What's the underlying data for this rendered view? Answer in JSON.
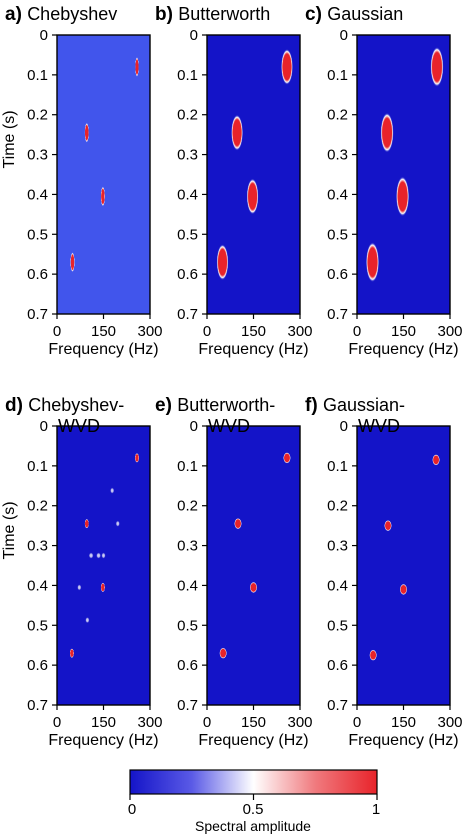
{
  "colors": {
    "low": "#1414c8",
    "mid": "#ffffff",
    "high": "#e8232a",
    "cheb_bg": "#4155ec",
    "axis": "#000000"
  },
  "chart_data": [
    {
      "type": "heatmap",
      "letter": "a)",
      "title": "Chebyshev",
      "xlabel": "Frequency (Hz)",
      "ylabel": "Time (s)",
      "xlim": [
        0,
        300
      ],
      "ylim": [
        0,
        0.7
      ],
      "xticks": [
        "0",
        "150",
        "300"
      ],
      "yticks": [
        "0",
        "0.1",
        "0.2",
        "0.3",
        "0.4",
        "0.5",
        "0.6",
        "0.7"
      ],
      "background": 0.35,
      "spots": [
        {
          "f": 258,
          "t": 0.08,
          "df": 6,
          "dt": 0.025,
          "v": 1.0
        },
        {
          "f": 96,
          "t": 0.245,
          "df": 7,
          "dt": 0.025,
          "v": 1.0
        },
        {
          "f": 148,
          "t": 0.405,
          "df": 7,
          "dt": 0.025,
          "v": 1.0
        },
        {
          "f": 50,
          "t": 0.57,
          "df": 7,
          "dt": 0.025,
          "v": 1.0
        }
      ]
    },
    {
      "type": "heatmap",
      "letter": "b)",
      "title": "Butterworth",
      "xlabel": "Frequency (Hz)",
      "ylabel": "",
      "xlim": [
        0,
        300
      ],
      "ylim": [
        0,
        0.7
      ],
      "xticks": [
        "0",
        "150",
        "300"
      ],
      "yticks": [
        "0",
        "0.1",
        "0.2",
        "0.3",
        "0.4",
        "0.5",
        "0.6",
        "0.7"
      ],
      "background": 0.0,
      "spots": [
        {
          "f": 258,
          "t": 0.08,
          "df": 19,
          "dt": 0.045,
          "v": 1.0
        },
        {
          "f": 97,
          "t": 0.245,
          "df": 19,
          "dt": 0.045,
          "v": 1.0
        },
        {
          "f": 147,
          "t": 0.405,
          "df": 19,
          "dt": 0.045,
          "v": 1.0
        },
        {
          "f": 50,
          "t": 0.57,
          "df": 19,
          "dt": 0.045,
          "v": 1.0
        }
      ]
    },
    {
      "type": "heatmap",
      "letter": "c)",
      "title": "Gaussian",
      "xlabel": "Frequency (Hz)",
      "ylabel": "",
      "xlim": [
        0,
        300
      ],
      "ylim": [
        0,
        0.7
      ],
      "xticks": [
        "0",
        "150",
        "300"
      ],
      "yticks": [
        "0",
        "0.1",
        "0.2",
        "0.3",
        "0.4",
        "0.5",
        "0.6",
        "0.7"
      ],
      "background": 0.0,
      "spots": [
        {
          "f": 258,
          "t": 0.08,
          "df": 21,
          "dt": 0.05,
          "v": 1.0
        },
        {
          "f": 97,
          "t": 0.245,
          "df": 21,
          "dt": 0.05,
          "v": 1.0
        },
        {
          "f": 147,
          "t": 0.405,
          "df": 21,
          "dt": 0.05,
          "v": 1.0
        },
        {
          "f": 50,
          "t": 0.57,
          "df": 21,
          "dt": 0.05,
          "v": 1.0
        }
      ]
    },
    {
      "type": "heatmap",
      "letter": "d)",
      "title": "Chebyshev-",
      "title2": "WVD",
      "xlabel": "Frequency (Hz)",
      "ylabel": "Time (s)",
      "xlim": [
        0,
        300
      ],
      "ylim": [
        0,
        0.7
      ],
      "xticks": [
        "0",
        "150",
        "300"
      ],
      "yticks": [
        "0",
        "0.1",
        "0.2",
        "0.3",
        "0.4",
        "0.5",
        "0.6",
        "0.7"
      ],
      "background": 0.0,
      "spots": [
        {
          "f": 258,
          "t": 0.08,
          "df": 7,
          "dt": 0.012,
          "v": 1.0
        },
        {
          "f": 96,
          "t": 0.245,
          "df": 7,
          "dt": 0.012,
          "v": 1.0
        },
        {
          "f": 148,
          "t": 0.405,
          "df": 7,
          "dt": 0.012,
          "v": 1.0
        },
        {
          "f": 48,
          "t": 0.57,
          "df": 7,
          "dt": 0.012,
          "v": 1.0
        },
        {
          "f": 178,
          "t": 0.162,
          "df": 7,
          "dt": 0.008,
          "v": 0.42
        },
        {
          "f": 196,
          "t": 0.245,
          "df": 7,
          "dt": 0.008,
          "v": 0.42
        },
        {
          "f": 110,
          "t": 0.325,
          "df": 8,
          "dt": 0.008,
          "v": 0.42
        },
        {
          "f": 134,
          "t": 0.325,
          "df": 8,
          "dt": 0.008,
          "v": 0.42
        },
        {
          "f": 150,
          "t": 0.325,
          "df": 7,
          "dt": 0.008,
          "v": 0.42
        },
        {
          "f": 72,
          "t": 0.405,
          "df": 7,
          "dt": 0.008,
          "v": 0.42
        },
        {
          "f": 98,
          "t": 0.487,
          "df": 7,
          "dt": 0.008,
          "v": 0.42
        }
      ]
    },
    {
      "type": "heatmap",
      "letter": "e)",
      "title": "Butterworth-",
      "title2": "WVD",
      "xlabel": "Frequency (Hz)",
      "ylabel": "",
      "xlim": [
        0,
        300
      ],
      "ylim": [
        0,
        0.7
      ],
      "xticks": [
        "0",
        "150",
        "300"
      ],
      "yticks": [
        "0",
        "0.1",
        "0.2",
        "0.3",
        "0.4",
        "0.5",
        "0.6",
        "0.7"
      ],
      "background": 0.0,
      "spots": [
        {
          "f": 258,
          "t": 0.08,
          "df": 12,
          "dt": 0.014,
          "v": 1.0
        },
        {
          "f": 100,
          "t": 0.245,
          "df": 12,
          "dt": 0.014,
          "v": 1.0
        },
        {
          "f": 150,
          "t": 0.405,
          "df": 12,
          "dt": 0.014,
          "v": 1.0
        },
        {
          "f": 52,
          "t": 0.57,
          "df": 12,
          "dt": 0.014,
          "v": 1.0
        }
      ]
    },
    {
      "type": "heatmap",
      "letter": "f)",
      "title": "Gaussian-",
      "title2": "WVD",
      "xlabel": "Frequency (Hz)",
      "ylabel": "",
      "xlim": [
        0,
        300
      ],
      "ylim": [
        0,
        0.7
      ],
      "xticks": [
        "0",
        "150",
        "300"
      ],
      "yticks": [
        "0",
        "0.1",
        "0.2",
        "0.3",
        "0.4",
        "0.5",
        "0.6",
        "0.7"
      ],
      "background": 0.0,
      "spots": [
        {
          "f": 255,
          "t": 0.085,
          "df": 12,
          "dt": 0.014,
          "v": 1.0
        },
        {
          "f": 100,
          "t": 0.25,
          "df": 12,
          "dt": 0.014,
          "v": 1.0
        },
        {
          "f": 150,
          "t": 0.41,
          "df": 12,
          "dt": 0.014,
          "v": 1.0
        },
        {
          "f": 52,
          "t": 0.575,
          "df": 12,
          "dt": 0.014,
          "v": 1.0
        }
      ]
    }
  ],
  "colorbar": {
    "label": "Spectral amplitude",
    "ticks": [
      "0",
      "0.5",
      "1"
    ],
    "range": [
      0,
      1
    ]
  }
}
